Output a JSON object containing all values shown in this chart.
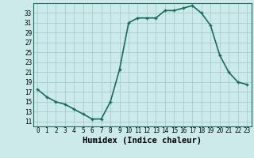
{
  "x": [
    0,
    1,
    2,
    3,
    4,
    5,
    6,
    7,
    8,
    9,
    10,
    11,
    12,
    13,
    14,
    15,
    16,
    17,
    18,
    19,
    20,
    21,
    22,
    23
  ],
  "y": [
    17.5,
    16.0,
    15.0,
    14.5,
    13.5,
    12.5,
    11.5,
    11.5,
    15.0,
    21.5,
    31.0,
    32.0,
    32.0,
    32.0,
    33.5,
    33.5,
    34.0,
    34.5,
    33.0,
    30.5,
    24.5,
    21.0,
    19.0,
    18.5
  ],
  "xlabel": "Humidex (Indice chaleur)",
  "xlim": [
    -0.5,
    23.5
  ],
  "ylim": [
    10.0,
    35.0
  ],
  "yticks": [
    11,
    13,
    15,
    17,
    19,
    21,
    23,
    25,
    27,
    29,
    31,
    33
  ],
  "xticks": [
    0,
    1,
    2,
    3,
    4,
    5,
    6,
    7,
    8,
    9,
    10,
    11,
    12,
    13,
    14,
    15,
    16,
    17,
    18,
    19,
    20,
    21,
    22,
    23
  ],
  "line_color": "#1a6b5a",
  "marker": "+",
  "bg_color": "#cceaea",
  "grid_color": "#aacccc",
  "tick_label_fontsize": 5.5,
  "xlabel_fontsize": 7.5,
  "line_width": 1.2,
  "marker_size": 3.5,
  "marker_edge_width": 1.0
}
